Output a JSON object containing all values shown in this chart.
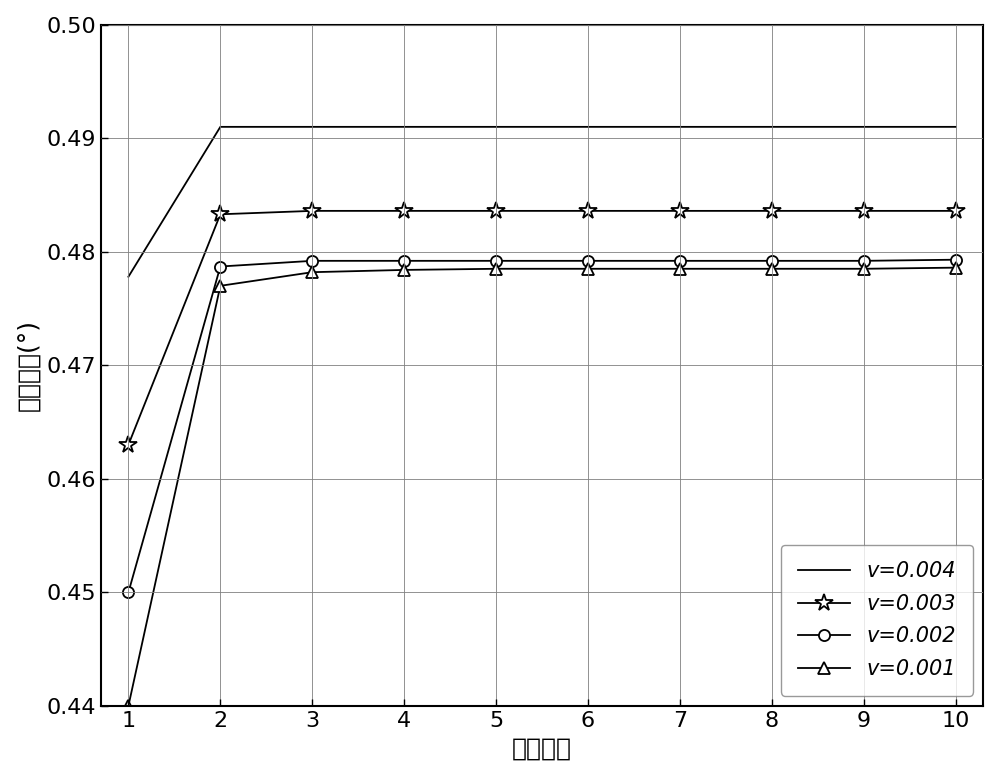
{
  "x": [
    1,
    2,
    3,
    4,
    5,
    6,
    7,
    8,
    9,
    10
  ],
  "series": [
    {
      "label": "v=0.004",
      "marker": null,
      "markersize": 0,
      "linestyle": "-",
      "linewidth": 1.3,
      "values": [
        0.4778,
        0.491,
        0.491,
        0.491,
        0.491,
        0.491,
        0.491,
        0.491,
        0.491,
        0.491
      ]
    },
    {
      "label": "v=0.003",
      "marker": "*",
      "markersize": 13,
      "linestyle": "-",
      "linewidth": 1.3,
      "values": [
        0.463,
        0.4833,
        0.4836,
        0.4836,
        0.4836,
        0.4836,
        0.4836,
        0.4836,
        0.4836,
        0.4836
      ]
    },
    {
      "label": "v=0.002",
      "marker": "o",
      "markersize": 8,
      "linestyle": "-",
      "linewidth": 1.3,
      "values": [
        0.45,
        0.4787,
        0.4792,
        0.4792,
        0.4792,
        0.4792,
        0.4792,
        0.4792,
        0.4792,
        0.4793
      ]
    },
    {
      "label": "v=0.001",
      "marker": "^",
      "markersize": 8,
      "linestyle": "-",
      "linewidth": 1.3,
      "values": [
        0.44,
        0.477,
        0.4782,
        0.4784,
        0.4785,
        0.4785,
        0.4785,
        0.4785,
        0.4785,
        0.4786
      ]
    }
  ],
  "xlabel": "迭代次数",
  "ylabel": "空间角度(°)",
  "xlim": [
    1,
    10
  ],
  "ylim": [
    0.44,
    0.5
  ],
  "xticks": [
    1,
    2,
    3,
    4,
    5,
    6,
    7,
    8,
    9,
    10
  ],
  "yticks": [
    0.44,
    0.45,
    0.46,
    0.47,
    0.48,
    0.49,
    0.5
  ],
  "grid": true,
  "legend_loc": "lower right",
  "font_size_labels": 18,
  "font_size_ticks": 16,
  "font_size_legend": 15,
  "background_color": "#ffffff",
  "figsize": [
    10.0,
    7.77
  ],
  "dpi": 100,
  "line_color": "#000000",
  "grid_color": "#000000",
  "grid_alpha": 0.3,
  "spine_linewidth": 1.5
}
